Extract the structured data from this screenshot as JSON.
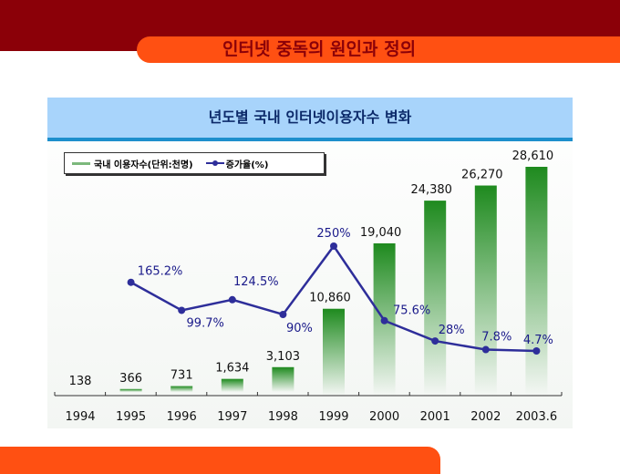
{
  "slide_title": "인터넷 중독의 원인과 정의",
  "chart_data": {
    "type": "bar+line",
    "title": "년도별 국내 인터넷이용자수 변화",
    "categories": [
      "1994",
      "1995",
      "1996",
      "1997",
      "1998",
      "1999",
      "2000",
      "2001",
      "2002",
      "2003.6"
    ],
    "series": [
      {
        "name": "국내 이용자수(단위:천명)",
        "type": "bar",
        "color": "#1e8a1e",
        "values": [
          138,
          366,
          731,
          1634,
          3103,
          10860,
          19040,
          24380,
          26270,
          28610
        ],
        "labels": [
          "138",
          "366",
          "731",
          "1,634",
          "3,103",
          "10,860",
          "19,040",
          "24,380",
          "26,270",
          "28,610"
        ]
      },
      {
        "name": "증가율(%)",
        "type": "line",
        "color": "#2e2e9a",
        "values": [
          null,
          165.2,
          99.7,
          124.5,
          90,
          250,
          75.6,
          28,
          7.8,
          4.7
        ],
        "labels": [
          "",
          "165.2%",
          "99.7%",
          "124.5%",
          "90%",
          "250%",
          "75.6%",
          "28%",
          "7.8%",
          "4.7%"
        ]
      }
    ],
    "legend": "top-left",
    "grid": false
  }
}
